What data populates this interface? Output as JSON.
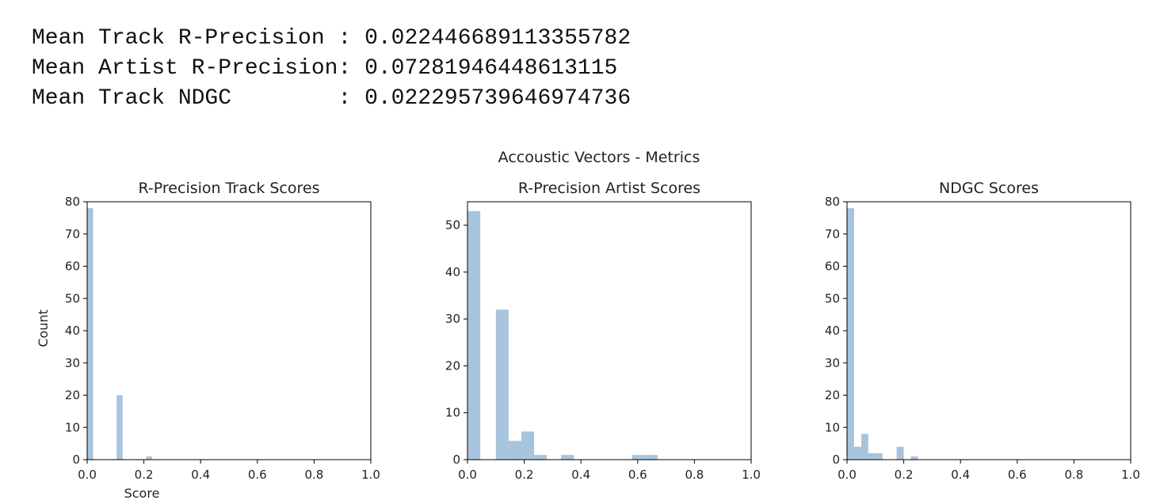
{
  "console": {
    "lines": [
      "Mean Track R-Precision : 0.022446689113355782",
      "Mean Artist R-Precision: 0.07281946448613115",
      "Mean Track NDGC        : 0.022295739646974736"
    ]
  },
  "colors": {
    "bar": "#a8c4dc",
    "axis": "#000000",
    "text": "#222222"
  },
  "chart_data": {
    "suptitle": "Accoustic Vectors - Metrics",
    "charts": [
      {
        "type": "bar",
        "title": "R-Precision Track Scores",
        "xlabel": "Score",
        "ylabel": "Count",
        "xlim": [
          0.0,
          1.0
        ],
        "ylim": [
          0,
          80
        ],
        "xticks": [
          "0.0",
          "0.2",
          "0.4",
          "0.6",
          "0.8",
          "1.0"
        ],
        "yticks": [
          "0",
          "10",
          "20",
          "30",
          "40",
          "50",
          "60",
          "70",
          "80"
        ],
        "bars": [
          {
            "x0": 0.0,
            "x1": 0.021,
            "count": 78
          },
          {
            "x0": 0.104,
            "x1": 0.125,
            "count": 20
          },
          {
            "x0": 0.208,
            "x1": 0.229,
            "count": 1
          }
        ]
      },
      {
        "type": "bar",
        "title": "R-Precision Artist Scores",
        "xlabel": "",
        "ylabel": "",
        "xlim": [
          0.0,
          1.0
        ],
        "ylim": [
          0,
          55
        ],
        "xticks": [
          "0.0",
          "0.2",
          "0.4",
          "0.6",
          "0.8",
          "1.0"
        ],
        "yticks": [
          "0",
          "10",
          "20",
          "30",
          "40",
          "50"
        ],
        "bars": [
          {
            "x0": 0.0,
            "x1": 0.045,
            "count": 53
          },
          {
            "x0": 0.1,
            "x1": 0.145,
            "count": 32
          },
          {
            "x0": 0.145,
            "x1": 0.19,
            "count": 4
          },
          {
            "x0": 0.19,
            "x1": 0.235,
            "count": 6
          },
          {
            "x0": 0.235,
            "x1": 0.28,
            "count": 1
          },
          {
            "x0": 0.33,
            "x1": 0.375,
            "count": 1
          },
          {
            "x0": 0.58,
            "x1": 0.625,
            "count": 1
          },
          {
            "x0": 0.625,
            "x1": 0.67,
            "count": 1
          }
        ]
      },
      {
        "type": "bar",
        "title": "NDGC Scores",
        "xlabel": "",
        "ylabel": "",
        "xlim": [
          0.0,
          1.0
        ],
        "ylim": [
          0,
          80
        ],
        "xticks": [
          "0.0",
          "0.2",
          "0.4",
          "0.6",
          "0.8",
          "1.0"
        ],
        "yticks": [
          "0",
          "10",
          "20",
          "30",
          "40",
          "50",
          "60",
          "70",
          "80"
        ],
        "bars": [
          {
            "x0": 0.0,
            "x1": 0.025,
            "count": 78
          },
          {
            "x0": 0.025,
            "x1": 0.05,
            "count": 4
          },
          {
            "x0": 0.05,
            "x1": 0.075,
            "count": 8
          },
          {
            "x0": 0.075,
            "x1": 0.1,
            "count": 2
          },
          {
            "x0": 0.1,
            "x1": 0.125,
            "count": 2
          },
          {
            "x0": 0.175,
            "x1": 0.2,
            "count": 4
          },
          {
            "x0": 0.225,
            "x1": 0.25,
            "count": 1
          }
        ]
      }
    ]
  }
}
